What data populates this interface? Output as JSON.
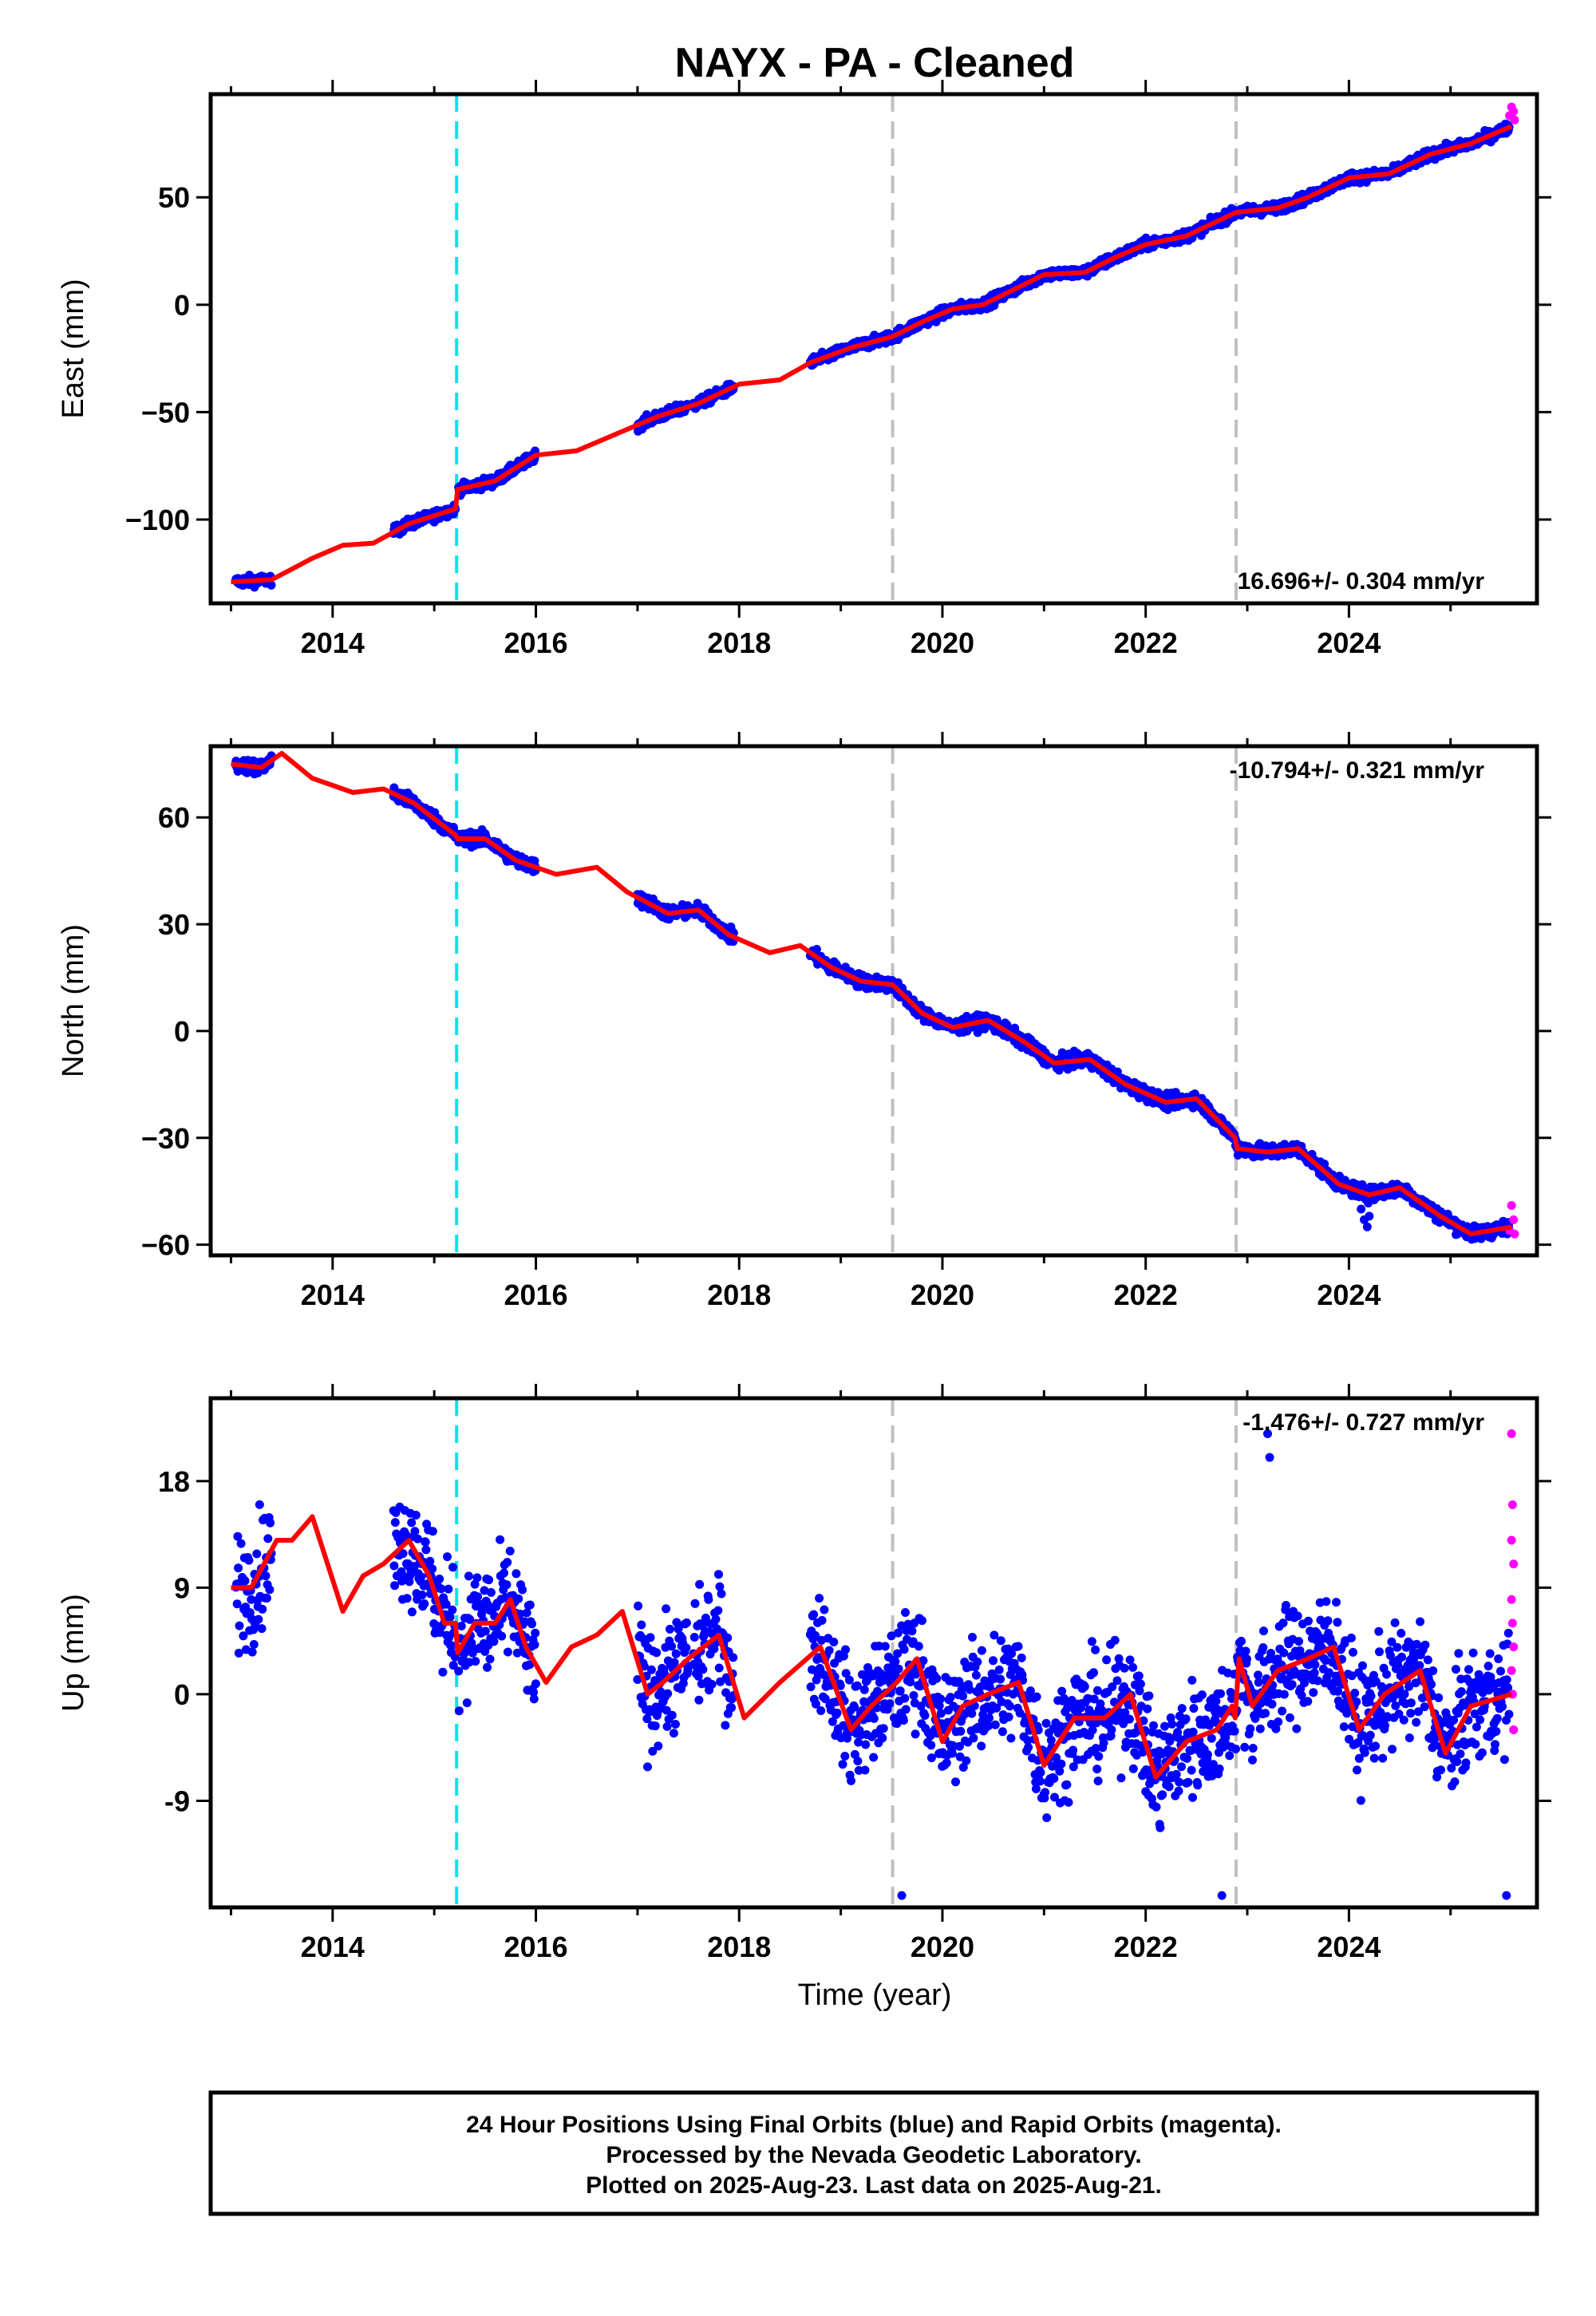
{
  "title": "NAYX  - PA - Cleaned",
  "colors": {
    "final": "#0000ff",
    "rapid": "#ff00ff",
    "model": "#ff0000",
    "offset_antenna": "#00e5e5",
    "offset_other": "#c0c0c0"
  },
  "xlabel": "Time (year)",
  "x_ticks": [
    "2014",
    "2016",
    "2018",
    "2020",
    "2022",
    "2024"
  ],
  "footer": {
    "line1": "24 Hour Positions Using Final Orbits (blue) and Rapid Orbits (magenta).",
    "line2": "Processed by the Nevada Geodetic Laboratory.",
    "line3": "Plotted on 2025-Aug-23. Last data on 2025-Aug-21."
  },
  "chart_data": [
    {
      "type": "scatter",
      "ylabel": "East (mm)",
      "rate_label": "16.696+/- 0.304 mm/yr",
      "xlim": [
        2012.8,
        2025.85
      ],
      "ylim": [
        -139,
        98
      ],
      "y_ticks": [
        50,
        0,
        -50,
        -100
      ],
      "y_tick_labels": [
        "50",
        "0",
        "−50",
        "−100"
      ],
      "offsets": [
        2015.22,
        2019.51,
        2022.89
      ],
      "segments": [
        [
          2013.05,
          2013.4
        ],
        [
          2014.6,
          2015.21
        ],
        [
          2015.24,
          2016.0
        ],
        [
          2017.0,
          2017.5
        ],
        [
          2017.55,
          2017.95
        ],
        [
          2018.7,
          2025.58
        ]
      ],
      "rapid_range": [
        2025.56,
        2025.64
      ],
      "noise": 2.0,
      "outliers": [],
      "rapid_points": [
        {
          "x": 2025.58,
          "y": 88
        },
        {
          "x": 2025.6,
          "y": 92
        },
        {
          "x": 2025.62,
          "y": 90
        },
        {
          "x": 2025.63,
          "y": 86
        }
      ],
      "model": [
        [
          2013.0,
          -129
        ],
        [
          2013.4,
          -128
        ],
        [
          2013.8,
          -118
        ],
        [
          2014.1,
          -112
        ],
        [
          2014.4,
          -111
        ],
        [
          2014.75,
          -102
        ],
        [
          2015.21,
          -95
        ],
        [
          2015.23,
          -86
        ],
        [
          2015.6,
          -82
        ],
        [
          2016.0,
          -70
        ],
        [
          2016.4,
          -68
        ],
        [
          2016.8,
          -60
        ],
        [
          2017.2,
          -52
        ],
        [
          2017.6,
          -46
        ],
        [
          2018.0,
          -37
        ],
        [
          2018.4,
          -35
        ],
        [
          2018.7,
          -27
        ],
        [
          2019.1,
          -20
        ],
        [
          2019.5,
          -15
        ],
        [
          2019.8,
          -8
        ],
        [
          2020.1,
          -2
        ],
        [
          2020.4,
          0
        ],
        [
          2020.7,
          7
        ],
        [
          2021.0,
          14
        ],
        [
          2021.4,
          15
        ],
        [
          2021.7,
          22
        ],
        [
          2022.0,
          28
        ],
        [
          2022.4,
          32
        ],
        [
          2022.89,
          43
        ],
        [
          2023.3,
          45
        ],
        [
          2023.6,
          50
        ],
        [
          2024.0,
          59
        ],
        [
          2024.4,
          61
        ],
        [
          2024.8,
          70
        ],
        [
          2025.2,
          75
        ],
        [
          2025.6,
          83
        ]
      ]
    },
    {
      "type": "scatter",
      "ylabel": "North (mm)",
      "rate_label": "-10.794+/- 0.321 mm/yr",
      "xlim": [
        2012.8,
        2025.85
      ],
      "ylim": [
        -63,
        80
      ],
      "y_ticks": [
        60,
        30,
        0,
        -30,
        -60
      ],
      "y_tick_labels": [
        "60",
        "30",
        "0",
        "−30",
        "−60"
      ],
      "offsets": [
        2015.22,
        2019.51,
        2022.89
      ],
      "segments": [
        [
          2013.05,
          2013.4
        ],
        [
          2014.6,
          2015.21
        ],
        [
          2015.24,
          2016.0
        ],
        [
          2017.0,
          2017.5
        ],
        [
          2017.55,
          2017.95
        ],
        [
          2018.7,
          2025.58
        ]
      ],
      "rapid_range": [
        2025.56,
        2025.64
      ],
      "noise": 1.6,
      "outliers": [
        {
          "x": 2024.15,
          "y": -53
        },
        {
          "x": 2024.18,
          "y": -55
        },
        {
          "x": 2024.2,
          "y": -52
        },
        {
          "x": 2024.12,
          "y": -50
        }
      ],
      "rapid_points": [
        {
          "x": 2025.58,
          "y": -56
        },
        {
          "x": 2025.6,
          "y": -49
        },
        {
          "x": 2025.62,
          "y": -53
        },
        {
          "x": 2025.63,
          "y": -57
        }
      ],
      "model": [
        [
          2013.0,
          75
        ],
        [
          2013.3,
          74
        ],
        [
          2013.5,
          78
        ],
        [
          2013.8,
          71
        ],
        [
          2014.2,
          67
        ],
        [
          2014.5,
          68
        ],
        [
          2014.8,
          64
        ],
        [
          2015.21,
          55
        ],
        [
          2015.23,
          54
        ],
        [
          2015.5,
          54
        ],
        [
          2015.8,
          48
        ],
        [
          2016.2,
          44
        ],
        [
          2016.6,
          46
        ],
        [
          2016.9,
          39
        ],
        [
          2017.3,
          33
        ],
        [
          2017.6,
          34
        ],
        [
          2017.9,
          27
        ],
        [
          2018.3,
          22
        ],
        [
          2018.6,
          24
        ],
        [
          2018.9,
          18
        ],
        [
          2019.2,
          14
        ],
        [
          2019.51,
          13
        ],
        [
          2019.8,
          5
        ],
        [
          2020.1,
          1
        ],
        [
          2020.45,
          3
        ],
        [
          2020.8,
          -3
        ],
        [
          2021.1,
          -9
        ],
        [
          2021.45,
          -8
        ],
        [
          2021.8,
          -15
        ],
        [
          2022.2,
          -20
        ],
        [
          2022.5,
          -19
        ],
        [
          2022.88,
          -30
        ],
        [
          2022.9,
          -33
        ],
        [
          2023.2,
          -34
        ],
        [
          2023.5,
          -33
        ],
        [
          2023.9,
          -43
        ],
        [
          2024.2,
          -46
        ],
        [
          2024.5,
          -44
        ],
        [
          2024.9,
          -52
        ],
        [
          2025.2,
          -57
        ],
        [
          2025.6,
          -55
        ]
      ]
    },
    {
      "type": "scatter",
      "ylabel": "Up (mm)",
      "rate_label": "-1.476+/- 0.727 mm/yr",
      "xlim": [
        2012.8,
        2025.85
      ],
      "ylim": [
        -18,
        25
      ],
      "y_ticks": [
        18,
        9,
        0,
        -9
      ],
      "y_tick_labels": [
        "18",
        "9",
        "0",
        "-9"
      ],
      "offsets": [
        2015.22,
        2019.51,
        2022.89
      ],
      "segments": [
        [
          2013.05,
          2013.4
        ],
        [
          2014.6,
          2015.21
        ],
        [
          2015.24,
          2016.0
        ],
        [
          2017.0,
          2017.5
        ],
        [
          2017.55,
          2017.95
        ],
        [
          2018.7,
          2025.58
        ]
      ],
      "rapid_range": [
        2025.56,
        2025.64
      ],
      "noise": 4.0,
      "outliers": [
        {
          "x": 2023.2,
          "y": 22
        },
        {
          "x": 2023.22,
          "y": 20
        },
        {
          "x": 2019.6,
          "y": -17
        },
        {
          "x": 2022.75,
          "y": -17
        },
        {
          "x": 2025.55,
          "y": -17
        }
      ],
      "rapid_points": [
        {
          "x": 2025.6,
          "y": 22
        },
        {
          "x": 2025.61,
          "y": 16
        },
        {
          "x": 2025.6,
          "y": 13
        },
        {
          "x": 2025.62,
          "y": 11
        },
        {
          "x": 2025.6,
          "y": 8
        },
        {
          "x": 2025.61,
          "y": 6
        },
        {
          "x": 2025.62,
          "y": 4
        },
        {
          "x": 2025.6,
          "y": 2
        },
        {
          "x": 2025.61,
          "y": 0
        },
        {
          "x": 2025.62,
          "y": -3
        }
      ],
      "model": [
        [
          2013.0,
          9
        ],
        [
          2013.2,
          9
        ],
        [
          2013.45,
          13
        ],
        [
          2013.6,
          13
        ],
        [
          2013.8,
          15
        ],
        [
          2013.95,
          11
        ],
        [
          2014.1,
          7
        ],
        [
          2014.3,
          10
        ],
        [
          2014.5,
          11
        ],
        [
          2014.75,
          13
        ],
        [
          2014.95,
          10
        ],
        [
          2015.1,
          6
        ],
        [
          2015.21,
          6
        ],
        [
          2015.23,
          3.5
        ],
        [
          2015.4,
          6
        ],
        [
          2015.6,
          6
        ],
        [
          2015.75,
          8
        ],
        [
          2015.9,
          4
        ],
        [
          2016.1,
          1
        ],
        [
          2016.35,
          4
        ],
        [
          2016.6,
          5
        ],
        [
          2016.85,
          7
        ],
        [
          2017.1,
          0
        ],
        [
          2017.25,
          1
        ],
        [
          2017.5,
          3
        ],
        [
          2017.8,
          5
        ],
        [
          2018.05,
          -2
        ],
        [
          2018.4,
          1
        ],
        [
          2018.8,
          4
        ],
        [
          2019.1,
          -3
        ],
        [
          2019.3,
          -1
        ],
        [
          2019.55,
          1
        ],
        [
          2019.75,
          3
        ],
        [
          2020.0,
          -4
        ],
        [
          2020.2,
          -1
        ],
        [
          2020.45,
          0
        ],
        [
          2020.75,
          1
        ],
        [
          2021.0,
          -6
        ],
        [
          2021.3,
          -2
        ],
        [
          2021.6,
          -2
        ],
        [
          2021.85,
          0
        ],
        [
          2022.1,
          -7
        ],
        [
          2022.4,
          -4
        ],
        [
          2022.7,
          -3
        ],
        [
          2022.85,
          -1
        ],
        [
          2022.88,
          -2
        ],
        [
          2022.92,
          3
        ],
        [
          2023.05,
          -1
        ],
        [
          2023.3,
          2
        ],
        [
          2023.6,
          3
        ],
        [
          2023.85,
          4
        ],
        [
          2024.1,
          -3
        ],
        [
          2024.35,
          0
        ],
        [
          2024.7,
          2
        ],
        [
          2024.95,
          -5
        ],
        [
          2025.2,
          -1
        ],
        [
          2025.6,
          0
        ]
      ]
    }
  ]
}
